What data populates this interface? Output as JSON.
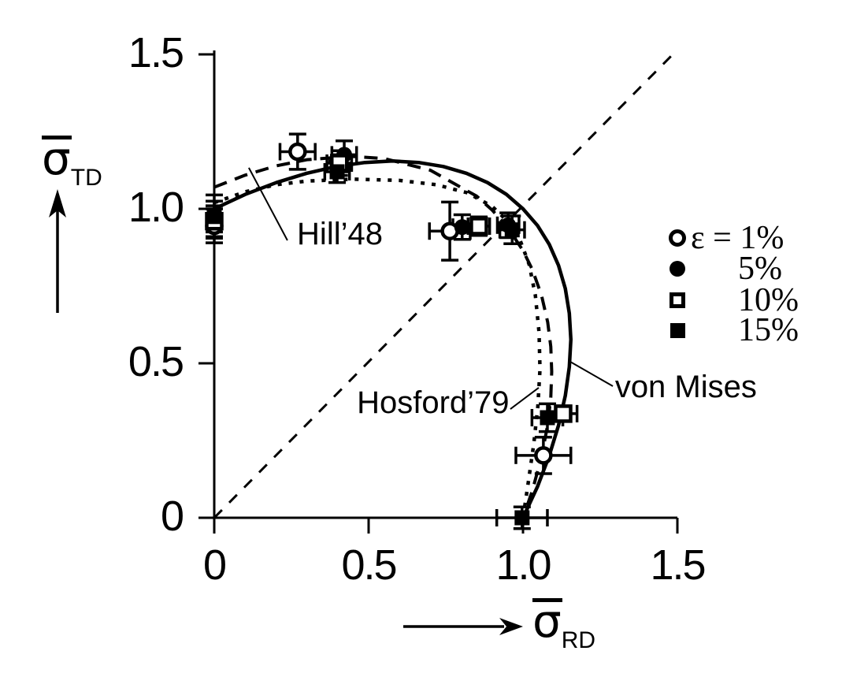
{
  "colors": {
    "ink": "#000000",
    "background": "#ffffff"
  },
  "y_axis_label": {
    "symbol": "σ",
    "subscript": "TD"
  },
  "x_axis_label": {
    "symbol": "σ",
    "subscript": "RD"
  },
  "legend": {
    "rows": [
      {
        "marker": "circle-open",
        "label": "ε = 1%"
      },
      {
        "marker": "circle-filled",
        "label": "5%"
      },
      {
        "marker": "square-open",
        "label": "10%"
      },
      {
        "marker": "square-filled",
        "label": "15%"
      }
    ]
  },
  "chart_data": {
    "type": "line",
    "title": "",
    "xlabel": "σ̄_RD",
    "ylabel": "σ̄_TD",
    "xlim": [
      0,
      1.5
    ],
    "ylim": [
      0,
      1.5
    ],
    "grid": false,
    "legend_position": "right",
    "x_ticks": [
      {
        "v": 0,
        "label": "0"
      },
      {
        "v": 0.5,
        "label": "0.5"
      },
      {
        "v": 1.0,
        "label": "1.0"
      },
      {
        "v": 1.5,
        "label": "1.5"
      }
    ],
    "y_ticks": [
      {
        "v": 0,
        "label": "0"
      },
      {
        "v": 0.5,
        "label": "0.5"
      },
      {
        "v": 1.0,
        "label": "1.0"
      },
      {
        "v": 1.5,
        "label": "1.5"
      }
    ],
    "diagonal_line": {
      "x1": 0,
      "y1": 0,
      "x2": 1.5,
      "y2": 1.515,
      "style": "thin-dashed"
    },
    "curves": [
      {
        "name": "von Mises",
        "style": "solid",
        "points": [
          [
            0,
            1
          ],
          [
            0.101,
            1.047
          ],
          [
            0.201,
            1.085
          ],
          [
            0.299,
            1.115
          ],
          [
            0.395,
            1.137
          ],
          [
            0.488,
            1.15
          ],
          [
            0.577,
            1.155
          ],
          [
            0.662,
            1.15
          ],
          [
            0.742,
            1.137
          ],
          [
            0.817,
            1.115
          ],
          [
            0.885,
            1.085
          ],
          [
            0.946,
            1.047
          ],
          [
            1.0,
            1.0
          ],
          [
            1.047,
            0.946
          ],
          [
            1.085,
            0.885
          ],
          [
            1.115,
            0.817
          ],
          [
            1.137,
            0.742
          ],
          [
            1.15,
            0.662
          ],
          [
            1.155,
            0.577
          ],
          [
            1.15,
            0.488
          ],
          [
            1.137,
            0.395
          ],
          [
            1.115,
            0.299
          ],
          [
            1.085,
            0.201
          ],
          [
            1.047,
            0.101
          ],
          [
            1.0,
            0
          ]
        ]
      },
      {
        "name": "Hill'48",
        "style": "dashed",
        "points": [
          [
            0,
            1.07
          ],
          [
            0.1,
            1.109
          ],
          [
            0.2,
            1.139
          ],
          [
            0.3,
            1.159
          ],
          [
            0.44,
            1.17
          ],
          [
            0.55,
            1.163
          ],
          [
            0.7,
            1.125
          ],
          [
            0.85,
            1.041
          ],
          [
            0.9,
            0.996
          ],
          [
            0.946,
            0.946
          ],
          [
            1.0,
            0.865
          ],
          [
            1.03,
            0.804
          ],
          [
            1.06,
            0.72
          ],
          [
            1.08,
            0.633
          ],
          [
            1.09,
            0.554
          ],
          [
            1.093,
            0.473
          ],
          [
            1.09,
            0.389
          ],
          [
            1.08,
            0.301
          ],
          [
            1.06,
            0.197
          ],
          [
            1.03,
            0.087
          ],
          [
            1.0,
            0
          ]
        ]
      },
      {
        "name": "Hosford'79",
        "style": "dotted",
        "points": [
          [
            0,
            1.02
          ],
          [
            0.1,
            1.055
          ],
          [
            0.2,
            1.078
          ],
          [
            0.3,
            1.09
          ],
          [
            0.45,
            1.096
          ],
          [
            0.6,
            1.092
          ],
          [
            0.72,
            1.078
          ],
          [
            0.82,
            1.052
          ],
          [
            0.9,
            1.008
          ],
          [
            0.95,
            0.96
          ],
          [
            0.99,
            0.9
          ],
          [
            1.02,
            0.82
          ],
          [
            1.04,
            0.72
          ],
          [
            1.052,
            0.6
          ],
          [
            1.055,
            0.48
          ],
          [
            1.048,
            0.36
          ],
          [
            1.035,
            0.24
          ],
          [
            1.015,
            0.1
          ],
          [
            1.0,
            0
          ]
        ]
      }
    ],
    "series": [
      {
        "name": "ε = 1%",
        "marker": "circle-open",
        "points": [
          {
            "x": 0,
            "y": 0.945,
            "ey": 0.055
          },
          {
            "x": 0.27,
            "y": 1.185,
            "ex": 0.057,
            "ey": 0.057
          },
          {
            "x": 0.763,
            "y": 0.928,
            "ex": 0.066,
            "ey": 0.094
          },
          {
            "x": 1.066,
            "y": 0.202,
            "ex": 0.089,
            "ey": 0.059
          }
        ]
      },
      {
        "name": "5%",
        "marker": "circle-filled",
        "points": [
          {
            "x": 0,
            "y": 0.975,
            "ey": 0.05
          },
          {
            "x": 0.421,
            "y": 1.175,
            "ex": 0.04,
            "ey": 0.045
          },
          {
            "x": 0.803,
            "y": 0.941,
            "ex": 0.03,
            "ey": 0.04
          },
          {
            "x": 0.952,
            "y": 0.947,
            "ex": 0.035,
            "ey": 0.04
          }
        ]
      },
      {
        "name": "10%",
        "marker": "square-open",
        "points": [
          {
            "x": 0,
            "y": 0.96,
            "ey": 0.05
          },
          {
            "x": 0.405,
            "y": 1.148,
            "ex": 0.04,
            "ey": 0.04
          },
          {
            "x": 0.857,
            "y": 0.944,
            "ex": 0.035,
            "ey": 0.03
          },
          {
            "x": 1.13,
            "y": 0.337,
            "ex": 0.045,
            "ey": 0.025
          }
        ]
      },
      {
        "name": "15%",
        "marker": "square-filled",
        "points": [
          {
            "x": 0,
            "y": 0.975,
            "ey": 0.07
          },
          {
            "x": 0.398,
            "y": 1.12,
            "ex": 0.04,
            "ey": 0.035
          },
          {
            "x": 0.965,
            "y": 0.932,
            "ex": 0.04,
            "ey": 0.045
          },
          {
            "x": 1.079,
            "y": 0.324,
            "ex": 0.05,
            "ey": 0.045
          },
          {
            "x": 0.997,
            "y": 0,
            "ex": 0.082,
            "ey": 0.035
          }
        ]
      }
    ],
    "annotations": [
      {
        "text": "Hill’48",
        "text_x": 0.268,
        "text_y": 0.918,
        "leader": [
          [
            0.237,
            0.898
          ],
          [
            0.112,
            1.133
          ]
        ]
      },
      {
        "text": "Hosford’79",
        "text_x": 0.462,
        "text_y": 0.372,
        "leader": [
          [
            0.959,
            0.352
          ],
          [
            1.051,
            0.421
          ]
        ]
      },
      {
        "text": "von Mises",
        "text_x": 1.298,
        "text_y": 0.423,
        "leader": [
          [
            1.291,
            0.426
          ],
          [
            1.153,
            0.505
          ]
        ]
      }
    ]
  }
}
